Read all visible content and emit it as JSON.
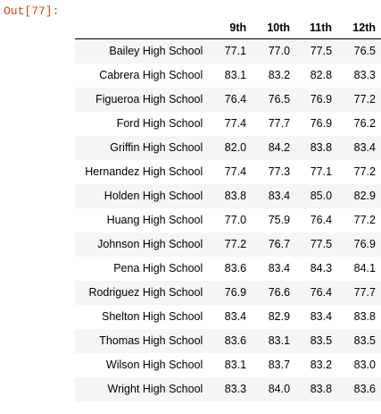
{
  "cell": {
    "prompt": "Out[77]:"
  },
  "table": {
    "columns": [
      "9th",
      "10th",
      "11th",
      "12th"
    ],
    "rows": [
      {
        "index": "Bailey High School",
        "values": [
          "77.1",
          "77.0",
          "77.5",
          "76.5"
        ]
      },
      {
        "index": "Cabrera High School",
        "values": [
          "83.1",
          "83.2",
          "82.8",
          "83.3"
        ]
      },
      {
        "index": "Figueroa High School",
        "values": [
          "76.4",
          "76.5",
          "76.9",
          "77.2"
        ]
      },
      {
        "index": "Ford High School",
        "values": [
          "77.4",
          "77.7",
          "76.9",
          "76.2"
        ]
      },
      {
        "index": "Griffin High School",
        "values": [
          "82.0",
          "84.2",
          "83.8",
          "83.4"
        ]
      },
      {
        "index": "Hernandez High School",
        "values": [
          "77.4",
          "77.3",
          "77.1",
          "77.2"
        ]
      },
      {
        "index": "Holden High School",
        "values": [
          "83.8",
          "83.4",
          "85.0",
          "82.9"
        ]
      },
      {
        "index": "Huang High School",
        "values": [
          "77.0",
          "75.9",
          "76.4",
          "77.2"
        ]
      },
      {
        "index": "Johnson High School",
        "values": [
          "77.2",
          "76.7",
          "77.5",
          "76.9"
        ]
      },
      {
        "index": "Pena High School",
        "values": [
          "83.6",
          "83.4",
          "84.3",
          "84.1"
        ]
      },
      {
        "index": "Rodriguez High School",
        "values": [
          "76.9",
          "76.6",
          "76.4",
          "77.7"
        ]
      },
      {
        "index": "Shelton High School",
        "values": [
          "83.4",
          "82.9",
          "83.4",
          "83.8"
        ]
      },
      {
        "index": "Thomas High School",
        "values": [
          "83.6",
          "83.1",
          "83.5",
          "83.5"
        ]
      },
      {
        "index": "Wilson High School",
        "values": [
          "83.1",
          "83.7",
          "83.2",
          "83.0"
        ]
      },
      {
        "index": "Wright High School",
        "values": [
          "83.3",
          "84.0",
          "83.8",
          "83.6"
        ]
      }
    ]
  },
  "colors": {
    "prompt": "#d84315",
    "stripe": "#f5f5f5",
    "header_rule": "#000000"
  }
}
